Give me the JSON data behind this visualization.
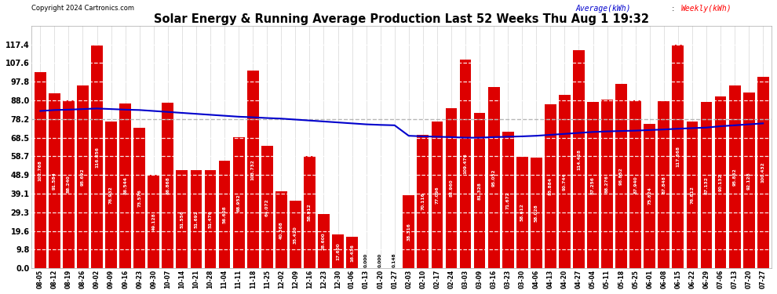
{
  "title": "Solar Energy & Running Average Production Last 52 Weeks Thu Aug 1 19:32",
  "copyright": "Copyright 2024 Cartronics.com",
  "legend_avg": "Average(kWh)",
  "legend_weekly": "Weekly(kWh)",
  "bar_color": "#dd0000",
  "avg_line_color": "#0000cc",
  "dashed_line_color": "#999999",
  "background_color": "#ffffff",
  "grid_color": "#bbbbbb",
  "ylim": [
    0,
    127.0
  ],
  "yticks": [
    0.0,
    9.8,
    19.6,
    29.3,
    39.1,
    48.9,
    58.7,
    68.5,
    78.2,
    88.0,
    97.8,
    107.6,
    117.4
  ],
  "categories": [
    "08-05",
    "08-12",
    "08-19",
    "08-26",
    "09-02",
    "09-09",
    "09-16",
    "09-23",
    "09-30",
    "10-07",
    "10-14",
    "10-21",
    "10-28",
    "11-04",
    "11-11",
    "11-18",
    "11-25",
    "12-02",
    "12-09",
    "12-16",
    "12-23",
    "12-30",
    "01-06",
    "01-13",
    "01-20",
    "01-27",
    "02-03",
    "02-10",
    "02-17",
    "02-24",
    "03-03",
    "03-09",
    "03-16",
    "03-23",
    "03-30",
    "04-06",
    "04-13",
    "04-20",
    "04-27",
    "05-04",
    "05-11",
    "05-18",
    "05-25",
    "06-01",
    "06-08",
    "06-15",
    "06-22",
    "06-29",
    "07-06",
    "07-13",
    "07-20",
    "07-27"
  ],
  "weekly_values": [
    102.768,
    91.584,
    88.24,
    95.692,
    116.856,
    76.932,
    86.544,
    73.576,
    49.128,
    86.868,
    51.556,
    51.692,
    51.476,
    56.608,
    68.952,
    103.732,
    64.072,
    40.368,
    35.42,
    58.912,
    28.6,
    17.6,
    16.436,
    0.0,
    0.0,
    0.148,
    38.316,
    70.116,
    77.096,
    83.96,
    109.476,
    81.328,
    95.052,
    71.672,
    58.612,
    58.028,
    85.884,
    90.744,
    114.428,
    87.256,
    88.276,
    96.852,
    87.94,
    75.824,
    87.848,
    117.368,
    76.812,
    87.132,
    90.132,
    95.852,
    92.128,
    100.432
  ],
  "avg_values": [
    82.5,
    83.0,
    83.2,
    83.5,
    83.8,
    83.5,
    83.2,
    83.0,
    82.5,
    82.0,
    81.5,
    81.0,
    80.5,
    80.0,
    79.5,
    79.2,
    78.8,
    78.5,
    78.0,
    77.5,
    77.0,
    76.5,
    76.0,
    75.5,
    75.2,
    75.0,
    69.5,
    69.2,
    69.0,
    68.8,
    68.5,
    68.5,
    68.8,
    69.0,
    69.2,
    69.5,
    70.0,
    70.5,
    71.0,
    71.5,
    71.8,
    72.0,
    72.2,
    72.5,
    72.8,
    73.2,
    73.5,
    73.8,
    74.5,
    75.0,
    75.5,
    76.0
  ]
}
